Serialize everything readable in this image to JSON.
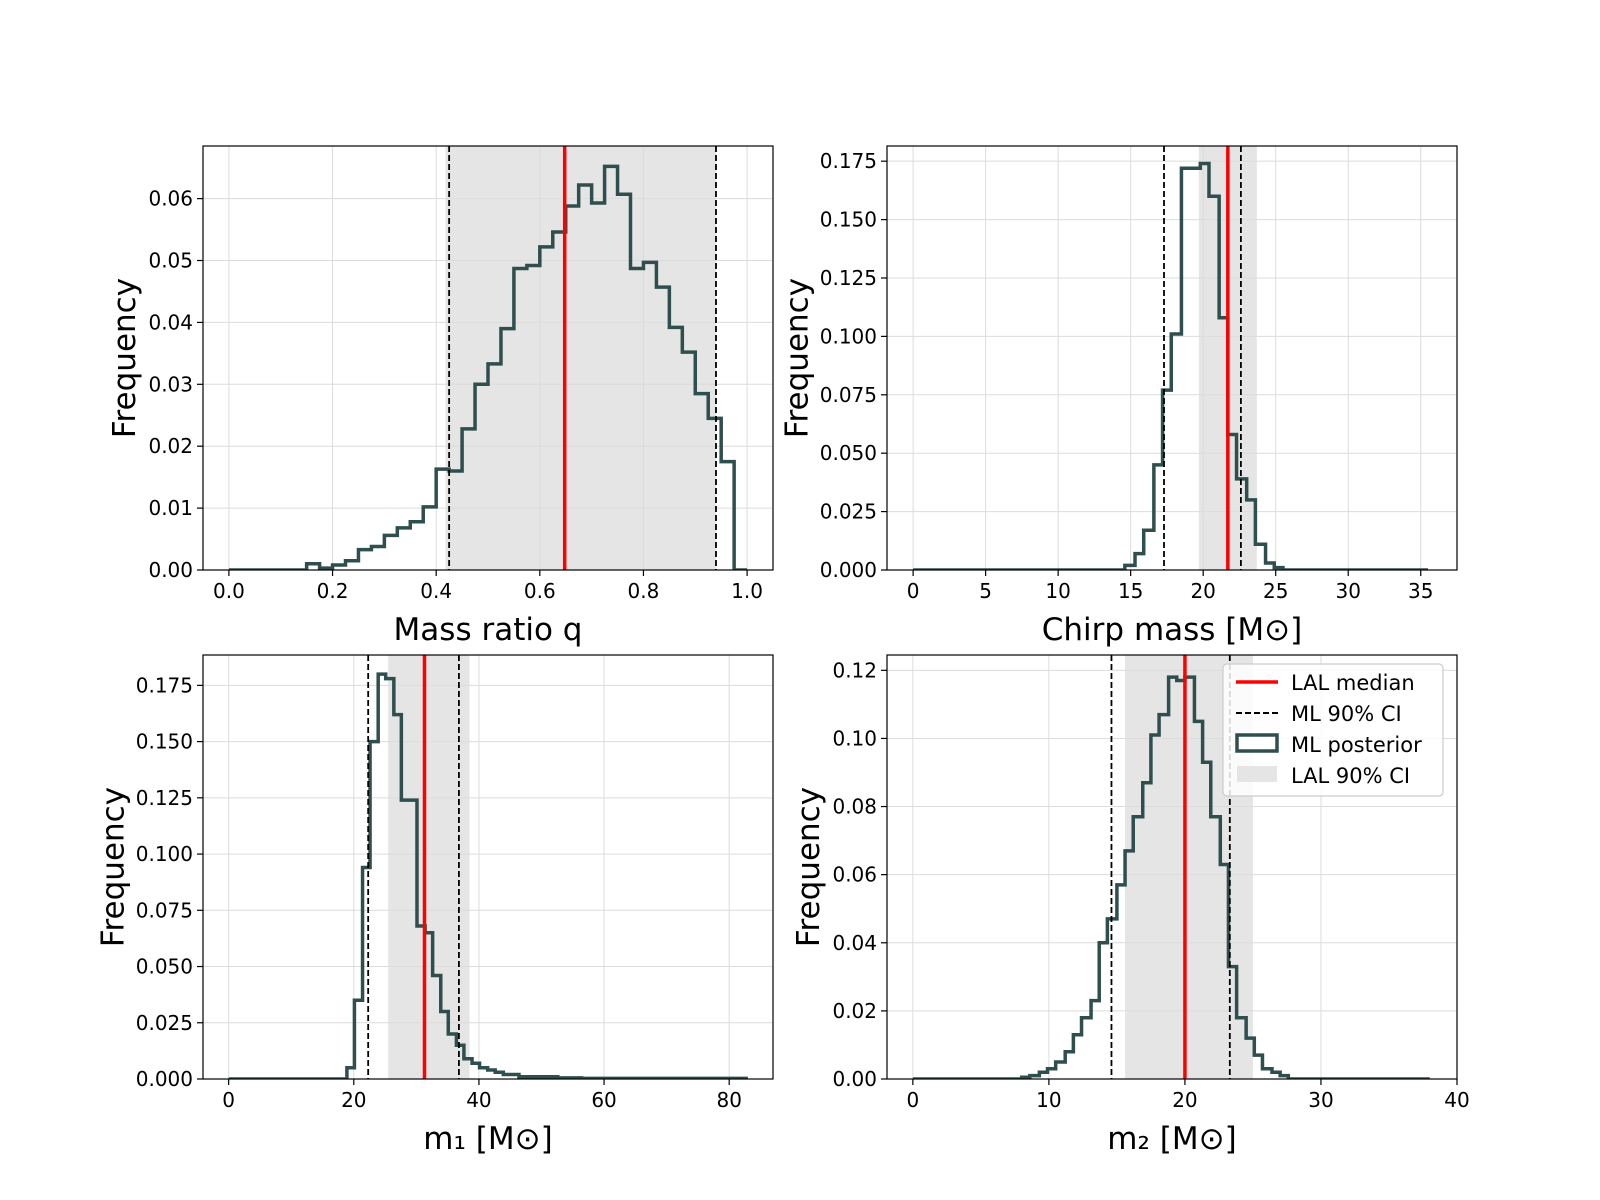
{
  "colors": {
    "median": "#ff0000",
    "ml_ci": "#000000",
    "posterior": "#2f4f4f",
    "lal_ci_fill": "#e5e5e5",
    "grid": "#dcdcdc",
    "background": "#ffffff"
  },
  "legend": {
    "placement": "top-right of bottom-right panel",
    "entries": [
      {
        "label": "LAL median",
        "style": "solid-red-line"
      },
      {
        "label": "ML 90% CI",
        "style": "dashed-black-line"
      },
      {
        "label": "ML posterior",
        "style": "dark-outline-box"
      },
      {
        "label": "LAL 90% CI",
        "style": "gray-fill"
      }
    ]
  },
  "chart_data": [
    {
      "type": "histogram",
      "xlabel": "Mass ratio q",
      "ylabel": "Frequency",
      "xlim": [
        -0.05,
        1.05
      ],
      "ylim": [
        0,
        0.0685
      ],
      "xticks": [
        0.0,
        0.2,
        0.4,
        0.6,
        0.8,
        1.0
      ],
      "xtick_labels": [
        "0.0",
        "0.2",
        "0.4",
        "0.6",
        "0.8",
        "1.0"
      ],
      "yticks": [
        0,
        0.01,
        0.02,
        0.03,
        0.04,
        0.05,
        0.06
      ],
      "ytick_labels": [
        "0.00",
        "0.01",
        "0.02",
        "0.03",
        "0.04",
        "0.05",
        "0.06"
      ],
      "grid": true,
      "lal_median": 0.648,
      "lal_ci": [
        0.418,
        0.94
      ],
      "ml_ci": [
        0.425,
        0.94
      ],
      "bin_edges": [
        0.0,
        0.025,
        0.05,
        0.075,
        0.1,
        0.125,
        0.15,
        0.175,
        0.2,
        0.225,
        0.25,
        0.275,
        0.3,
        0.325,
        0.35,
        0.375,
        0.4,
        0.425,
        0.45,
        0.475,
        0.5,
        0.525,
        0.55,
        0.575,
        0.6,
        0.625,
        0.65,
        0.675,
        0.7,
        0.725,
        0.75,
        0.775,
        0.8,
        0.825,
        0.85,
        0.875,
        0.9,
        0.925,
        0.95,
        0.975,
        1.0
      ],
      "values": [
        0.0,
        0.0,
        0.0,
        0.0,
        0.0,
        0.0,
        0.001,
        0.0003,
        0.0008,
        0.0015,
        0.0033,
        0.0038,
        0.0056,
        0.0068,
        0.0078,
        0.0102,
        0.0163,
        0.016,
        0.0228,
        0.03,
        0.0333,
        0.039,
        0.0487,
        0.0492,
        0.0522,
        0.0546,
        0.0588,
        0.0622,
        0.0593,
        0.0652,
        0.0607,
        0.0487,
        0.0497,
        0.0457,
        0.0392,
        0.0352,
        0.0285,
        0.0245,
        0.0175,
        0.0
      ]
    },
    {
      "type": "histogram",
      "xlabel": "Chirp mass [M⊙]",
      "ylabel": "Frequency",
      "xlim": [
        -1.8,
        37.5
      ],
      "ylim": [
        0,
        0.1815
      ],
      "xticks": [
        0,
        5,
        10,
        15,
        20,
        25,
        30,
        35
      ],
      "xtick_labels": [
        "0",
        "5",
        "10",
        "15",
        "20",
        "25",
        "30",
        "35"
      ],
      "yticks": [
        0,
        0.025,
        0.05,
        0.075,
        0.1,
        0.125,
        0.15,
        0.175
      ],
      "ytick_labels": [
        "0.000",
        "0.025",
        "0.050",
        "0.075",
        "0.100",
        "0.125",
        "0.150",
        "0.175"
      ],
      "grid": true,
      "lal_median": 21.7,
      "lal_ci": [
        19.7,
        23.7
      ],
      "ml_ci": [
        17.3,
        22.6
      ],
      "bin_edges": [
        0,
        14.6,
        15.3,
        15.9,
        16.6,
        17.2,
        17.8,
        18.5,
        19.1,
        19.8,
        20.4,
        21.1,
        21.7,
        22.3,
        23.0,
        23.6,
        24.3,
        24.9,
        25.5,
        35.5
      ],
      "values": [
        0.0,
        0.002,
        0.007,
        0.017,
        0.045,
        0.077,
        0.101,
        0.172,
        0.172,
        0.174,
        0.16,
        0.108,
        0.058,
        0.039,
        0.03,
        0.011,
        0.003,
        0.001,
        0.0
      ]
    },
    {
      "type": "histogram",
      "xlabel": "m₁ [M⊙]",
      "ylabel": "Frequency",
      "xlim": [
        -4.1,
        87.0
      ],
      "ylim": [
        0,
        0.1885
      ],
      "xticks": [
        0,
        20,
        40,
        60,
        80
      ],
      "xtick_labels": [
        "0",
        "20",
        "40",
        "60",
        "80"
      ],
      "yticks": [
        0,
        0.025,
        0.05,
        0.075,
        0.1,
        0.125,
        0.15,
        0.175
      ],
      "ytick_labels": [
        "0.000",
        "0.025",
        "0.050",
        "0.075",
        "0.100",
        "0.125",
        "0.150",
        "0.175"
      ],
      "grid": true,
      "lal_median": 31.3,
      "lal_ci": [
        25.5,
        38.5
      ],
      "ml_ci": [
        22.3,
        36.8
      ],
      "bin_edges": [
        0,
        18.9,
        20.1,
        21.4,
        22.6,
        23.9,
        25.1,
        26.4,
        27.6,
        28.9,
        30.1,
        31.4,
        32.6,
        33.9,
        35.1,
        36.4,
        37.6,
        38.9,
        40.1,
        41.4,
        42.6,
        43.9,
        45.1,
        46.4,
        47.6,
        48.9,
        50.1,
        51.4,
        52.6,
        53.9,
        55.1,
        56.4,
        82.7
      ],
      "values": [
        0.0,
        0.005,
        0.035,
        0.094,
        0.15,
        0.18,
        0.178,
        0.162,
        0.124,
        0.124,
        0.068,
        0.065,
        0.046,
        0.03,
        0.02,
        0.015,
        0.009,
        0.007,
        0.005,
        0.004,
        0.003,
        0.002,
        0.002,
        0.001,
        0.001,
        0.001,
        0.001,
        0.001,
        0.0005,
        0.0005,
        0.0005,
        0.0003
      ]
    },
    {
      "type": "histogram",
      "xlabel": "m₂ [M⊙]",
      "ylabel": "Frequency",
      "xlim": [
        -1.9,
        40.0
      ],
      "ylim": [
        0,
        0.1245
      ],
      "xticks": [
        0,
        10,
        20,
        30,
        40
      ],
      "xtick_labels": [
        "0",
        "10",
        "20",
        "30",
        "40"
      ],
      "yticks": [
        0,
        0.02,
        0.04,
        0.06,
        0.08,
        0.1,
        0.12
      ],
      "ytick_labels": [
        "0.00",
        "0.02",
        "0.04",
        "0.06",
        "0.08",
        "0.10",
        "0.12"
      ],
      "grid": true,
      "lal_median": 20.0,
      "lal_ci": [
        15.6,
        25.0
      ],
      "ml_ci": [
        14.6,
        23.3
      ],
      "bin_edges": [
        0,
        8.0,
        8.6,
        9.3,
        9.9,
        10.5,
        11.2,
        11.8,
        12.4,
        13.1,
        13.7,
        14.3,
        15.0,
        15.6,
        16.2,
        16.9,
        17.5,
        18.1,
        18.8,
        19.4,
        20.0,
        20.7,
        21.3,
        21.9,
        22.6,
        23.2,
        23.8,
        24.5,
        25.1,
        25.7,
        26.4,
        27.0,
        27.6,
        38.0
      ],
      "values": [
        0.0,
        0.0005,
        0.001,
        0.002,
        0.003,
        0.005,
        0.008,
        0.013,
        0.018,
        0.023,
        0.04,
        0.047,
        0.057,
        0.067,
        0.077,
        0.087,
        0.101,
        0.107,
        0.118,
        0.117,
        0.118,
        0.105,
        0.093,
        0.077,
        0.063,
        0.033,
        0.018,
        0.012,
        0.007,
        0.003,
        0.002,
        0.001,
        0.0
      ]
    }
  ]
}
